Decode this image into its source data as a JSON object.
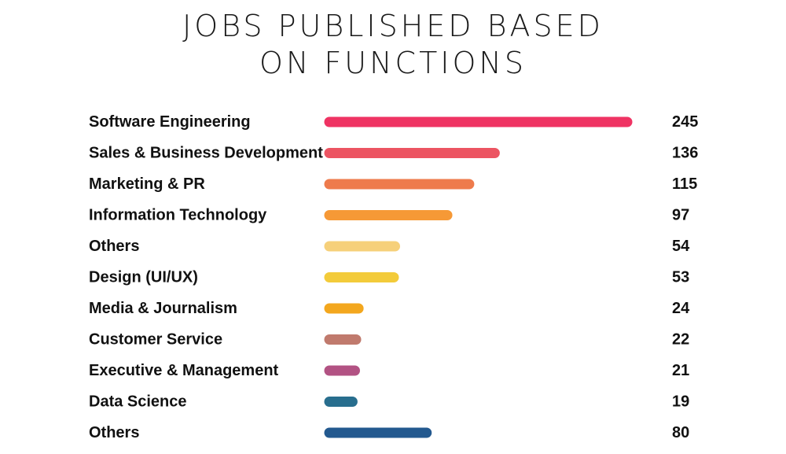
{
  "chart_data": {
    "type": "bar",
    "orientation": "horizontal",
    "title_lines": [
      "JOBS PUBLISHED BASED",
      "ON FUNCTIONS"
    ],
    "categories": [
      "Software Engineering",
      "Sales & Business Development",
      "Marketing & PR",
      "Information Technology",
      "Others",
      "Design (UI/UX)",
      "Media & Journalism",
      "Customer Service",
      "Executive & Management",
      "Data Science",
      "Others"
    ],
    "values": [
      245,
      136,
      115,
      97,
      54,
      53,
      24,
      22,
      21,
      19,
      80
    ],
    "colors": [
      "#ef3363",
      "#ec5462",
      "#ee7b4c",
      "#f69936",
      "#f6d07a",
      "#f3cb3a",
      "#f3a71e",
      "#c07a6d",
      "#b25283",
      "#286e8e",
      "#23598f"
    ],
    "xlabel": "",
    "ylabel": "",
    "grid": false,
    "legend": "none"
  }
}
